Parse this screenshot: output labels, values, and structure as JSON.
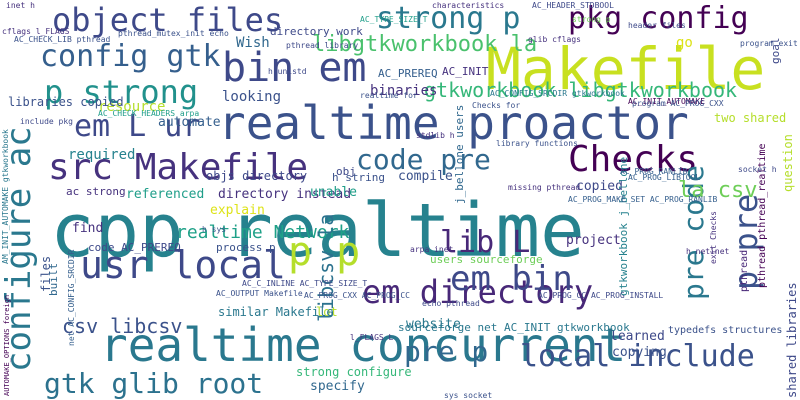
{
  "words": [
    {
      "text": "cpp realtime",
      "color": "#26828e"
    },
    {
      "text": "realtime proactor",
      "color": "#3b528b"
    },
    {
      "text": "realtime concurrent",
      "color": "#2a788e"
    },
    {
      "text": "Makefile",
      "color": "#c8e020"
    },
    {
      "text": "src Makefile",
      "color": "#46327e"
    },
    {
      "text": "usr local",
      "color": "#3e4989"
    },
    {
      "text": "configure ac",
      "color": "#2a788e"
    },
    {
      "text": "object files",
      "color": "#3e4989"
    },
    {
      "text": "pkg config",
      "color": "#440154"
    },
    {
      "text": "strong p",
      "color": "#2a788e"
    },
    {
      "text": "config gtk",
      "color": "#355f8d"
    },
    {
      "text": "bin em",
      "color": "#3e4989"
    },
    {
      "text": "p strong",
      "color": "#21918c"
    },
    {
      "text": "Checks",
      "color": "#440154"
    },
    {
      "text": "em directory",
      "color": "#482878"
    },
    {
      "text": "local include",
      "color": "#3b528b"
    },
    {
      "text": "gtk glib root",
      "color": "#2c728e"
    },
    {
      "text": "pre p",
      "color": "#31688e"
    },
    {
      "text": "lib L",
      "color": "#482878"
    },
    {
      "text": "em bin",
      "color": "#3e4989"
    },
    {
      "text": "p pre",
      "color": "#3b528b"
    },
    {
      "text": "pre code",
      "color": "#2a788e"
    },
    {
      "text": "code pre",
      "color": "#31688e"
    },
    {
      "text": "p p",
      "color": "#b5de2b"
    },
    {
      "text": "em L ur",
      "color": "#3e4989"
    },
    {
      "text": "libgtkworkbook la",
      "color": "#4ac16d"
    },
    {
      "text": "gtkworkbook libgtkworkbook",
      "color": "#35b779"
    },
    {
      "text": "realtime Network",
      "color": "#1fa188"
    },
    {
      "text": "la csv",
      "color": "#6ece58"
    },
    {
      "text": "csv libcsv",
      "color": "#3b528b"
    },
    {
      "text": "libcsv la",
      "color": "#2c728e"
    },
    {
      "text": "binaries",
      "color": "#46327e"
    },
    {
      "text": "Wish",
      "color": "#31688e"
    },
    {
      "text": "resource",
      "color": "#b5de2b"
    },
    {
      "text": "looking",
      "color": "#3b528b"
    },
    {
      "text": "required",
      "color": "#26828e"
    },
    {
      "text": "automate",
      "color": "#355f8d"
    },
    {
      "text": "explain",
      "color": "#dde318"
    },
    {
      "text": "objs directory",
      "color": "#3e4989"
    },
    {
      "text": "directory instead",
      "color": "#46327e"
    },
    {
      "text": "referenced",
      "color": "#1f9e89"
    },
    {
      "text": "ac strong",
      "color": "#46327e"
    },
    {
      "text": "compile",
      "color": "#3b528b"
    },
    {
      "text": "unable",
      "color": "#1f9e89"
    },
    {
      "text": "copied",
      "color": "#3e4989"
    },
    {
      "text": "copying",
      "color": "#3b528b"
    },
    {
      "text": "learned",
      "color": "#3e4989"
    },
    {
      "text": "project",
      "color": "#46327e"
    },
    {
      "text": "website",
      "color": "#2a788e"
    },
    {
      "text": "specify",
      "color": "#31688e"
    },
    {
      "text": "lot",
      "color": "#b5de2b"
    },
    {
      "text": "find",
      "color": "#46327e"
    },
    {
      "text": "similar Makefile",
      "color": "#2a788e"
    },
    {
      "text": "strong configure",
      "color": "#35b779"
    },
    {
      "text": "libraries copied",
      "color": "#3b528b"
    },
    {
      "text": "shared libraries",
      "color": "#3e4989"
    },
    {
      "text": "two shared",
      "color": "#b5de2b"
    },
    {
      "text": "question",
      "color": "#b5de2b"
    },
    {
      "text": "goal",
      "color": "#3e4989"
    },
    {
      "text": "go",
      "color": "#dde318"
    },
    {
      "text": "AC_INIT",
      "color": "#46327e"
    },
    {
      "text": "AC_PREREQ",
      "color": "#355f8d"
    },
    {
      "text": "code AC_PREREQ",
      "color": "#3e4989"
    },
    {
      "text": "process p",
      "color": "#3b528b"
    },
    {
      "text": "users sourceforge",
      "color": "#6ece58"
    },
    {
      "text": "sourceforge net AC_INIT gtkworkbook",
      "color": "#2a788e"
    },
    {
      "text": "directory work",
      "color": "#3e4989"
    },
    {
      "text": "gtkworkbook j_bellone",
      "color": "#26828e"
    },
    {
      "text": "pthread pthread_realtime",
      "color": "#440154"
    },
    {
      "text": "pthread",
      "color": "#482878"
    },
    {
      "text": "typedefs structures",
      "color": "#3b528b"
    },
    {
      "text": "j_bellone users",
      "color": "#31688e"
    },
    {
      "text": "h string",
      "color": "#3b528b"
    },
    {
      "text": "obj",
      "color": "#3e4989"
    },
    {
      "text": "files",
      "color": "#3b528b"
    },
    {
      "text": "built",
      "color": "#31688e"
    },
    {
      "text": "inet h",
      "color": "#46327e"
    },
    {
      "text": "AC_PROG_CXX AC_PROG_CC",
      "color": "#3b528b"
    },
    {
      "text": "AC_PROG_CC AC_PROG_INSTALL",
      "color": "#3e4989"
    },
    {
      "text": "AC_PROG_LIBTOOL",
      "color": "#355f8d"
    },
    {
      "text": "AC_CONFIG_SRCDIR gtkworkbook",
      "color": "#2a788e"
    },
    {
      "text": "AC_INIT_AUTOMAKE",
      "color": "#440154"
    },
    {
      "text": "AC_CHECK_HEADERS arpa",
      "color": "#1f9e89"
    },
    {
      "text": "include pkg",
      "color": "#3e4989"
    },
    {
      "text": "cflags l_FLAGS",
      "color": "#46327e"
    },
    {
      "text": "AC_CHECK_LIB pthread",
      "color": "#3b528b"
    },
    {
      "text": "h unistd",
      "color": "#3e4989"
    },
    {
      "text": "stdlib h",
      "color": "#46327e"
    },
    {
      "text": "h sys",
      "color": "#3b528b"
    },
    {
      "text": "arpa inet",
      "color": "#46327e"
    },
    {
      "text": "net AC_CONFIG_SRCDIR",
      "color": "#355f8d"
    },
    {
      "text": "AM_INIT_AUTOMAKE gtkworkbook",
      "color": "#2a788e"
    },
    {
      "text": "AC_OUTPUT Makefile",
      "color": "#3b528b"
    },
    {
      "text": "echo pthread",
      "color": "#3e4989"
    },
    {
      "text": "missing pthread",
      "color": "#46327e"
    },
    {
      "text": "sys socket",
      "color": "#3b528b"
    },
    {
      "text": "characteristics",
      "color": "#46327e"
    },
    {
      "text": "AC_HEADER_STDBOOL",
      "color": "#3e4989"
    },
    {
      "text": "AC_TYPE_SIZE_T",
      "color": "#1f9e89"
    },
    {
      "text": "Checks for",
      "color": "#3b528b"
    },
    {
      "text": "header files",
      "color": "#3e4989"
    },
    {
      "text": "glib cflags",
      "color": "#46327e"
    },
    {
      "text": "program exit",
      "color": "#3b528b"
    },
    {
      "text": "pthread library",
      "color": "#3e4989"
    },
    {
      "text": "library functions",
      "color": "#3b528b"
    },
    {
      "text": "AC_PROG_RANLIB",
      "color": "#355f8d"
    },
    {
      "text": "exit Checks",
      "color": "#46327e"
    },
    {
      "text": "realtime for",
      "color": "#3b528b"
    },
    {
      "text": "socket h",
      "color": "#3e4989"
    },
    {
      "text": "h netinet",
      "color": "#46327e"
    },
    {
      "text": "pthread_mutex_init echo",
      "color": "#3b528b"
    },
    {
      "text": "AC_C_INLINE AC_TYPE_SIZE_T",
      "color": "#3e4989"
    },
    {
      "text": "strong p",
      "color": "#6ece58"
    },
    {
      "text": "l_FLAGS L",
      "color": "#46327e"
    },
    {
      "text": "program AC_PROG_CXX",
      "color": "#3b528b"
    },
    {
      "text": "AC_PROG_MAKE_SET AC_PROG_RANLIB",
      "color": "#355f8d"
    },
    {
      "text": "AUTOMAKE_OPTIONS foreign",
      "color": "#440154"
    }
  ]
}
